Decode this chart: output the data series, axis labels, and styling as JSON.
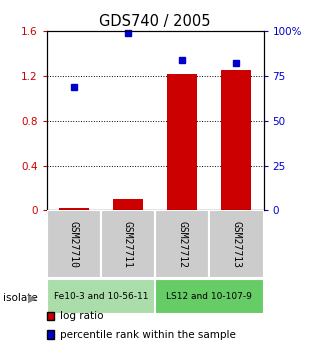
{
  "title": "GDS740 / 2005",
  "samples": [
    "GSM27710",
    "GSM27711",
    "GSM27712",
    "GSM27713"
  ],
  "log_ratio": [
    0.02,
    0.1,
    1.22,
    1.25
  ],
  "percentile": [
    69,
    99,
    84,
    82
  ],
  "groups": [
    {
      "label": "Fe10-3 and 10-56-11",
      "samples": [
        0,
        1
      ]
    },
    {
      "label": "LS12 and 10-107-9",
      "samples": [
        2,
        3
      ]
    }
  ],
  "ylim_left": [
    0,
    1.6
  ],
  "ylim_right": [
    0,
    100
  ],
  "yticks_left": [
    0,
    0.4,
    0.8,
    1.2,
    1.6
  ],
  "yticks_right": [
    0,
    25,
    50,
    75,
    100
  ],
  "ytick_labels_left": [
    "0",
    "0.4",
    "0.8",
    "1.2",
    "1.6"
  ],
  "ytick_labels_right": [
    "0",
    "25",
    "50",
    "75",
    "100%"
  ],
  "bar_color": "#cc0000",
  "dot_color": "#0000cc",
  "bar_width": 0.55,
  "isolate_label": "isolate",
  "legend_bar": "log ratio",
  "legend_dot": "percentile rank within the sample",
  "group_color_1": "#aaddaa",
  "group_color_2": "#66cc66",
  "sample_box_color": "#cccccc"
}
